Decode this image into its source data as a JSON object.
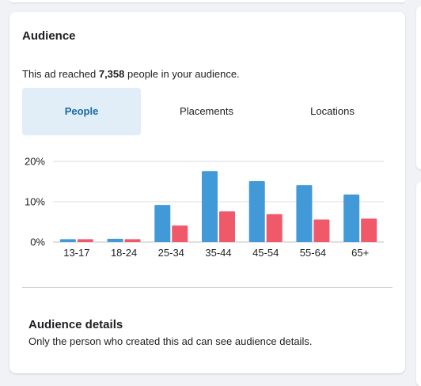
{
  "card": {
    "title": "Audience",
    "reach_prefix": "This ad reached ",
    "reach_count": "7,358",
    "reach_suffix": " people in your audience."
  },
  "tabs": [
    {
      "label": "People",
      "active": true
    },
    {
      "label": "Placements",
      "active": false
    },
    {
      "label": "Locations",
      "active": false
    }
  ],
  "chart_data": {
    "type": "bar",
    "categories": [
      "13-17",
      "18-24",
      "25-34",
      "35-44",
      "45-54",
      "55-64",
      "65+"
    ],
    "series": [
      {
        "color": "#4299d8",
        "values": [
          0.7,
          0.8,
          9.2,
          17.6,
          15.1,
          14.1,
          11.8
        ]
      },
      {
        "color": "#f0596a",
        "values": [
          0.7,
          0.7,
          4.1,
          7.6,
          6.9,
          5.6,
          5.8
        ]
      }
    ],
    "y_ticks": [
      "0%",
      "10%",
      "20%"
    ],
    "y_tick_values": [
      0,
      10,
      20
    ],
    "ylim": [
      0,
      20
    ],
    "grid": true
  },
  "details": {
    "title": "Audience details",
    "text": "Only the person who created this ad can see audience details."
  }
}
